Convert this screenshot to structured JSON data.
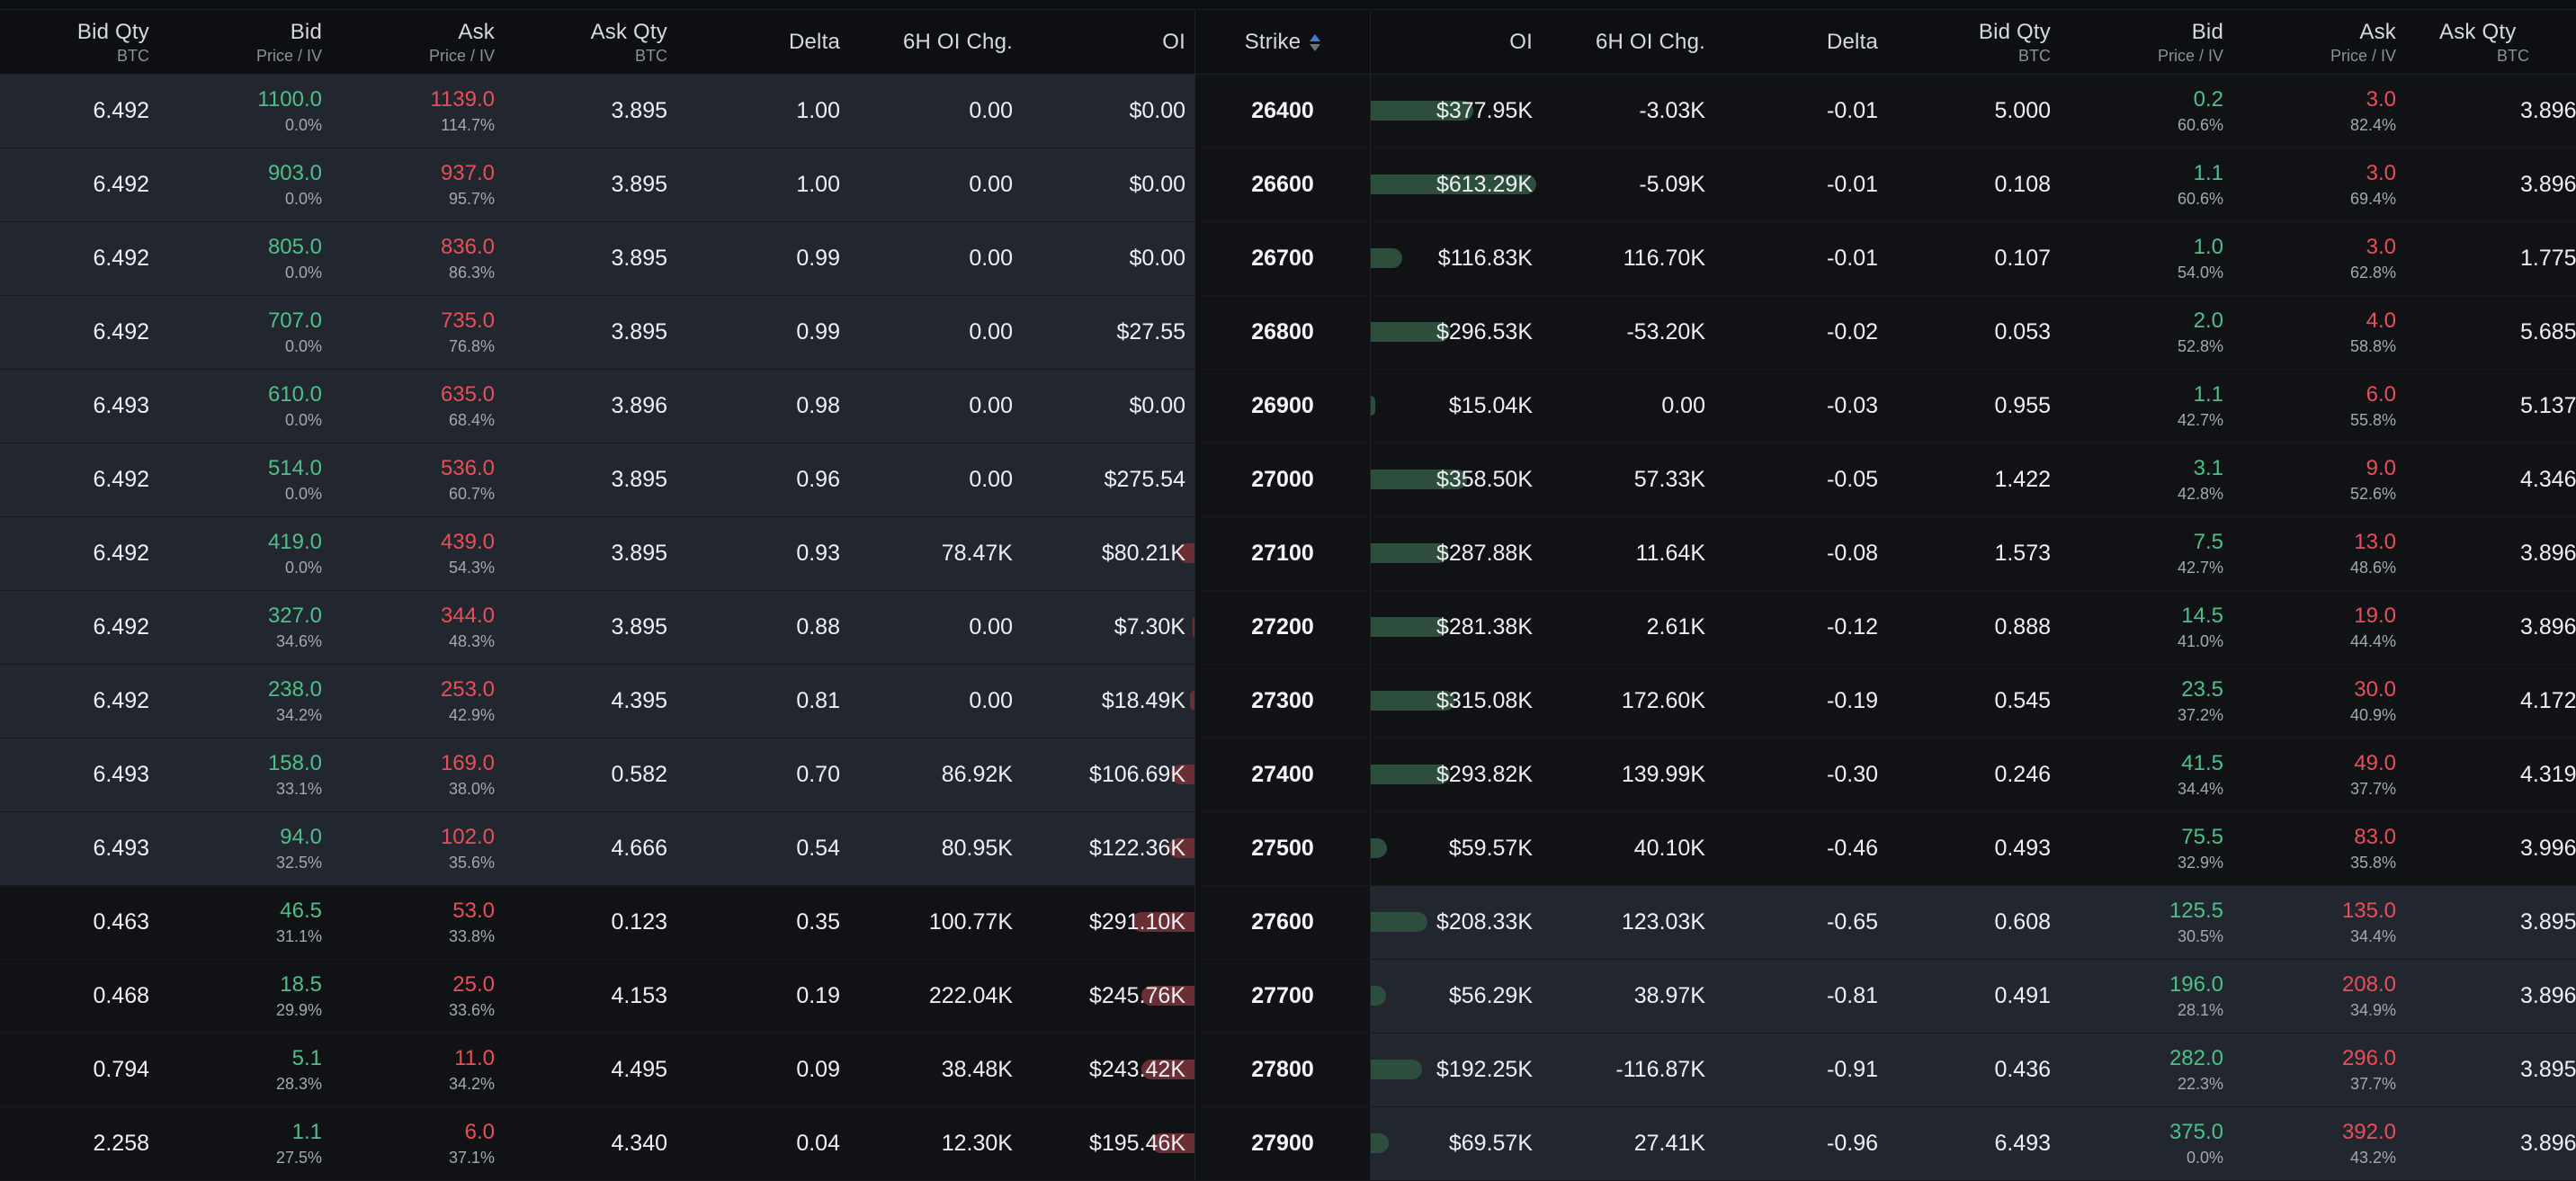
{
  "headers": {
    "calls": [
      {
        "title": "Bid Qty",
        "sub": "BTC"
      },
      {
        "title": "Bid",
        "sub": "Price / IV"
      },
      {
        "title": "Ask",
        "sub": "Price / IV"
      },
      {
        "title": "Ask Qty",
        "sub": "BTC"
      },
      {
        "title": "Delta",
        "sub": ""
      },
      {
        "title": "6H OI Chg.",
        "sub": ""
      },
      {
        "title": "OI",
        "sub": ""
      }
    ],
    "strike": "Strike",
    "puts": [
      {
        "title": "OI",
        "sub": ""
      },
      {
        "title": "6H OI Chg.",
        "sub": ""
      },
      {
        "title": "Delta",
        "sub": ""
      },
      {
        "title": "Bid Qty",
        "sub": "BTC"
      },
      {
        "title": "Bid",
        "sub": "Price / IV"
      },
      {
        "title": "Ask",
        "sub": "Price / IV"
      },
      {
        "title": "Ask Qty",
        "sub": "BTC"
      }
    ]
  },
  "colors": {
    "bid": "#4fbf8a",
    "ask": "#e5505a",
    "itm_bg": "#22262e",
    "otm_bg": "#111216",
    "call_oi_bar": "#6b2e35",
    "put_oi_bar": "#2d4e3d"
  },
  "rows": [
    {
      "strike": "26400",
      "call_itm": true,
      "call": {
        "bid_qty": "6.492",
        "bid": "1100.0",
        "bid_iv": "0.0%",
        "ask": "1139.0",
        "ask_iv": "114.7%",
        "ask_qty": "3.895",
        "delta": "1.00",
        "oi_chg": "0.00",
        "oi": "$0.00",
        "oi_bar": 0
      },
      "put": {
        "oi": "$377.95K",
        "oi_bar": 0.62,
        "oi_chg": "-3.03K",
        "delta": "-0.01",
        "bid_qty": "5.000",
        "bid": "0.2",
        "bid_iv": "60.6%",
        "ask": "3.0",
        "ask_iv": "82.4%",
        "ask_qty": "3.896"
      }
    },
    {
      "strike": "26600",
      "call_itm": true,
      "call": {
        "bid_qty": "6.492",
        "bid": "903.0",
        "bid_iv": "0.0%",
        "ask": "937.0",
        "ask_iv": "95.7%",
        "ask_qty": "3.895",
        "delta": "1.00",
        "oi_chg": "0.00",
        "oi": "$0.00",
        "oi_bar": 0
      },
      "put": {
        "oi": "$613.29K",
        "oi_bar": 1.0,
        "oi_chg": "-5.09K",
        "delta": "-0.01",
        "bid_qty": "0.108",
        "bid": "1.1",
        "bid_iv": "60.6%",
        "ask": "3.0",
        "ask_iv": "69.4%",
        "ask_qty": "3.896"
      }
    },
    {
      "strike": "26700",
      "call_itm": true,
      "call": {
        "bid_qty": "6.492",
        "bid": "805.0",
        "bid_iv": "0.0%",
        "ask": "836.0",
        "ask_iv": "86.3%",
        "ask_qty": "3.895",
        "delta": "0.99",
        "oi_chg": "0.00",
        "oi": "$0.00",
        "oi_bar": 0
      },
      "put": {
        "oi": "$116.83K",
        "oi_bar": 0.19,
        "oi_chg": "116.70K",
        "delta": "-0.01",
        "bid_qty": "0.107",
        "bid": "1.0",
        "bid_iv": "54.0%",
        "ask": "3.0",
        "ask_iv": "62.8%",
        "ask_qty": "1.775"
      }
    },
    {
      "strike": "26800",
      "call_itm": true,
      "call": {
        "bid_qty": "6.492",
        "bid": "707.0",
        "bid_iv": "0.0%",
        "ask": "735.0",
        "ask_iv": "76.8%",
        "ask_qty": "3.895",
        "delta": "0.99",
        "oi_chg": "0.00",
        "oi": "$27.55",
        "oi_bar": 0
      },
      "put": {
        "oi": "$296.53K",
        "oi_bar": 0.48,
        "oi_chg": "-53.20K",
        "delta": "-0.02",
        "bid_qty": "0.053",
        "bid": "2.0",
        "bid_iv": "52.8%",
        "ask": "4.0",
        "ask_iv": "58.8%",
        "ask_qty": "5.685"
      }
    },
    {
      "strike": "26900",
      "call_itm": true,
      "call": {
        "bid_qty": "6.493",
        "bid": "610.0",
        "bid_iv": "0.0%",
        "ask": "635.0",
        "ask_iv": "68.4%",
        "ask_qty": "3.896",
        "delta": "0.98",
        "oi_chg": "0.00",
        "oi": "$0.00",
        "oi_bar": 0
      },
      "put": {
        "oi": "$15.04K",
        "oi_bar": 0.025,
        "oi_chg": "0.00",
        "delta": "-0.03",
        "bid_qty": "0.955",
        "bid": "1.1",
        "bid_iv": "42.7%",
        "ask": "6.0",
        "ask_iv": "55.8%",
        "ask_qty": "5.137"
      }
    },
    {
      "strike": "27000",
      "call_itm": true,
      "call": {
        "bid_qty": "6.492",
        "bid": "514.0",
        "bid_iv": "0.0%",
        "ask": "536.0",
        "ask_iv": "60.7%",
        "ask_qty": "3.895",
        "delta": "0.96",
        "oi_chg": "0.00",
        "oi": "$275.54",
        "oi_bar": 0
      },
      "put": {
        "oi": "$358.50K",
        "oi_bar": 0.58,
        "oi_chg": "57.33K",
        "delta": "-0.05",
        "bid_qty": "1.422",
        "bid": "3.1",
        "bid_iv": "42.8%",
        "ask": "9.0",
        "ask_iv": "52.6%",
        "ask_qty": "4.346"
      }
    },
    {
      "strike": "27100",
      "call_itm": true,
      "call": {
        "bid_qty": "6.492",
        "bid": "419.0",
        "bid_iv": "0.0%",
        "ask": "439.0",
        "ask_iv": "54.3%",
        "ask_qty": "3.895",
        "delta": "0.93",
        "oi_chg": "78.47K",
        "oi": "$80.21K",
        "oi_bar": 0.12
      },
      "put": {
        "oi": "$287.88K",
        "oi_bar": 0.47,
        "oi_chg": "11.64K",
        "delta": "-0.08",
        "bid_qty": "1.573",
        "bid": "7.5",
        "bid_iv": "42.7%",
        "ask": "13.0",
        "ask_iv": "48.6%",
        "ask_qty": "3.896"
      }
    },
    {
      "strike": "27200",
      "call_itm": true,
      "call": {
        "bid_qty": "6.492",
        "bid": "327.0",
        "bid_iv": "34.6%",
        "ask": "344.0",
        "ask_iv": "48.3%",
        "ask_qty": "3.895",
        "delta": "0.88",
        "oi_chg": "0.00",
        "oi": "$7.30K",
        "oi_bar": 0.015
      },
      "put": {
        "oi": "$281.38K",
        "oi_bar": 0.46,
        "oi_chg": "2.61K",
        "delta": "-0.12",
        "bid_qty": "0.888",
        "bid": "14.5",
        "bid_iv": "41.0%",
        "ask": "19.0",
        "ask_iv": "44.4%",
        "ask_qty": "3.896"
      }
    },
    {
      "strike": "27300",
      "call_itm": true,
      "call": {
        "bid_qty": "6.492",
        "bid": "238.0",
        "bid_iv": "34.2%",
        "ask": "253.0",
        "ask_iv": "42.9%",
        "ask_qty": "4.395",
        "delta": "0.81",
        "oi_chg": "0.00",
        "oi": "$18.49K",
        "oi_bar": 0.03
      },
      "put": {
        "oi": "$315.08K",
        "oi_bar": 0.51,
        "oi_chg": "172.60K",
        "delta": "-0.19",
        "bid_qty": "0.545",
        "bid": "23.5",
        "bid_iv": "37.2%",
        "ask": "30.0",
        "ask_iv": "40.9%",
        "ask_qty": "4.172"
      }
    },
    {
      "strike": "27400",
      "call_itm": true,
      "call": {
        "bid_qty": "6.493",
        "bid": "158.0",
        "bid_iv": "33.1%",
        "ask": "169.0",
        "ask_iv": "38.0%",
        "ask_qty": "0.582",
        "delta": "0.70",
        "oi_chg": "86.92K",
        "oi": "$106.69K",
        "oi_bar": 0.16
      },
      "put": {
        "oi": "$293.82K",
        "oi_bar": 0.48,
        "oi_chg": "139.99K",
        "delta": "-0.30",
        "bid_qty": "0.246",
        "bid": "41.5",
        "bid_iv": "34.4%",
        "ask": "49.0",
        "ask_iv": "37.7%",
        "ask_qty": "4.319"
      }
    },
    {
      "strike": "27500",
      "call_itm": true,
      "call": {
        "bid_qty": "6.493",
        "bid": "94.0",
        "bid_iv": "32.5%",
        "ask": "102.0",
        "ask_iv": "35.6%",
        "ask_qty": "4.666",
        "delta": "0.54",
        "oi_chg": "80.95K",
        "oi": "$122.36K",
        "oi_bar": 0.18
      },
      "put": {
        "oi": "$59.57K",
        "oi_bar": 0.1,
        "oi_chg": "40.10K",
        "delta": "-0.46",
        "bid_qty": "0.493",
        "bid": "75.5",
        "bid_iv": "32.9%",
        "ask": "83.0",
        "ask_iv": "35.8%",
        "ask_qty": "3.996"
      }
    },
    {
      "strike": "27600",
      "call_itm": false,
      "call": {
        "bid_qty": "0.463",
        "bid": "46.5",
        "bid_iv": "31.1%",
        "ask": "53.0",
        "ask_iv": "33.8%",
        "ask_qty": "0.123",
        "delta": "0.35",
        "oi_chg": "100.77K",
        "oi": "$291.10K",
        "oi_bar": 0.44
      },
      "put": {
        "oi": "$208.33K",
        "oi_bar": 0.34,
        "oi_chg": "123.03K",
        "delta": "-0.65",
        "bid_qty": "0.608",
        "bid": "125.5",
        "bid_iv": "30.5%",
        "ask": "135.0",
        "ask_iv": "34.4%",
        "ask_qty": "3.895"
      }
    },
    {
      "strike": "27700",
      "call_itm": false,
      "call": {
        "bid_qty": "0.468",
        "bid": "18.5",
        "bid_iv": "29.9%",
        "ask": "25.0",
        "ask_iv": "33.6%",
        "ask_qty": "4.153",
        "delta": "0.19",
        "oi_chg": "222.04K",
        "oi": "$245.76K",
        "oi_bar": 0.37
      },
      "put": {
        "oi": "$56.29K",
        "oi_bar": 0.09,
        "oi_chg": "38.97K",
        "delta": "-0.81",
        "bid_qty": "0.491",
        "bid": "196.0",
        "bid_iv": "28.1%",
        "ask": "208.0",
        "ask_iv": "34.9%",
        "ask_qty": "3.896"
      }
    },
    {
      "strike": "27800",
      "call_itm": false,
      "call": {
        "bid_qty": "0.794",
        "bid": "5.1",
        "bid_iv": "28.3%",
        "ask": "11.0",
        "ask_iv": "34.2%",
        "ask_qty": "4.495",
        "delta": "0.09",
        "oi_chg": "38.48K",
        "oi": "$243.42K",
        "oi_bar": 0.37
      },
      "put": {
        "oi": "$192.25K",
        "oi_bar": 0.31,
        "oi_chg": "-116.87K",
        "delta": "-0.91",
        "bid_qty": "0.436",
        "bid": "282.0",
        "bid_iv": "22.3%",
        "ask": "296.0",
        "ask_iv": "37.7%",
        "ask_qty": "3.895"
      }
    },
    {
      "strike": "27900",
      "call_itm": false,
      "call": {
        "bid_qty": "2.258",
        "bid": "1.1",
        "bid_iv": "27.5%",
        "ask": "6.0",
        "ask_iv": "37.1%",
        "ask_qty": "4.340",
        "delta": "0.04",
        "oi_chg": "12.30K",
        "oi": "$195.46K",
        "oi_bar": 0.3
      },
      "put": {
        "oi": "$69.57K",
        "oi_bar": 0.11,
        "oi_chg": "27.41K",
        "delta": "-0.96",
        "bid_qty": "6.493",
        "bid": "375.0",
        "bid_iv": "0.0%",
        "ask": "392.0",
        "ask_iv": "43.2%",
        "ask_qty": "3.896"
      }
    }
  ]
}
